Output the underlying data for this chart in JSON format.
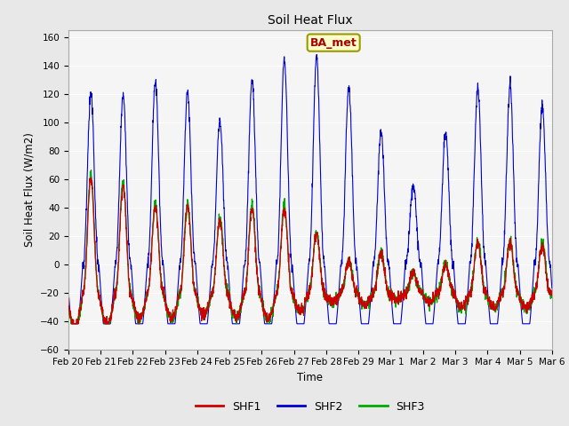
{
  "title": "Soil Heat Flux",
  "ylabel": "Soil Heat Flux (W/m2)",
  "xlabel": "Time",
  "ylim": [
    -60,
    165
  ],
  "yticks": [
    -60,
    -40,
    -20,
    0,
    20,
    40,
    60,
    80,
    100,
    120,
    140,
    160
  ],
  "x_labels": [
    "Feb 20",
    "Feb 21",
    "Feb 22",
    "Feb 23",
    "Feb 24",
    "Feb 25",
    "Feb 26",
    "Feb 27",
    "Feb 28",
    "Feb 29",
    "Mar 1",
    "Mar 2",
    "Mar 3",
    "Mar 4",
    "Mar 5",
    "Mar 6"
  ],
  "color_shf1": "#cc0000",
  "color_shf2": "#0000cc",
  "color_shf3": "#00aa00",
  "legend_label1": "SHF1",
  "legend_label2": "SHF2",
  "legend_label3": "SHF3",
  "annotation_text": "BA_met",
  "annotation_bg": "#ffffcc",
  "annotation_border": "#999900",
  "annotation_text_color": "#aa0000",
  "background_color": "#e8e8e8",
  "plot_bg": "#f5f5f5",
  "grid_color": "#ffffff",
  "n_days": 15,
  "points_per_day": 144,
  "day_amps_shf2": [
    121,
    119,
    128,
    121,
    100,
    130,
    144,
    146,
    124,
    93,
    55,
    93,
    125,
    126,
    111
  ],
  "day_amps_shf13": [
    80,
    75,
    61,
    60,
    50,
    59,
    59,
    41,
    22,
    28,
    14,
    20,
    35,
    35,
    34
  ]
}
